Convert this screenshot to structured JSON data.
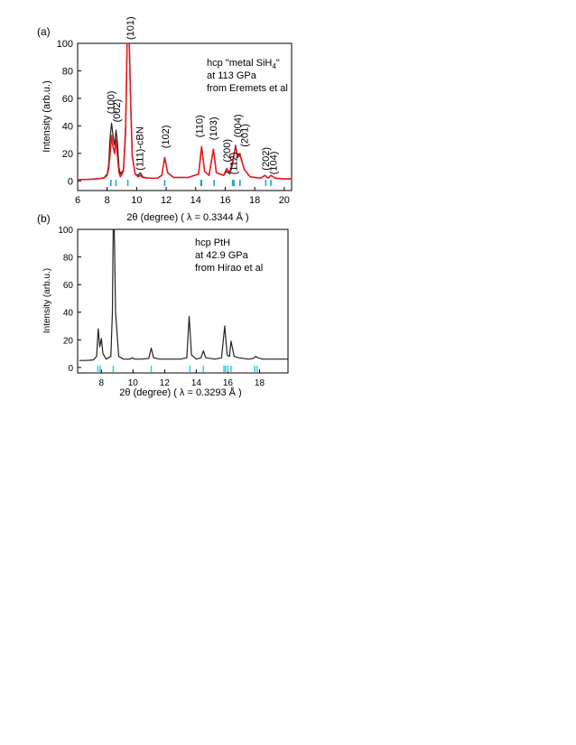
{
  "chart_data": [
    {
      "type": "line",
      "panel_label": "(a)",
      "annotation": [
        "hcp \"metal SiH₄\"",
        "at 113 GPa",
        "from Eremets et al"
      ],
      "xlabel": "2θ (degree) ( λ = 0.3344 Å )",
      "ylabel": "Intensity (arb.u.)",
      "xlim": [
        6,
        20.5
      ],
      "ylim": [
        -7,
        100
      ],
      "xticks": [
        6,
        8,
        10,
        12,
        14,
        16,
        18,
        20
      ],
      "yticks": [
        0,
        20,
        40,
        60,
        80,
        100
      ],
      "series": [
        {
          "color": "#222222",
          "values": [
            [
              6.0,
              1
            ],
            [
              6.5,
              1
            ],
            [
              7.0,
              1.3
            ],
            [
              7.5,
              1.8
            ],
            [
              7.8,
              2.5
            ],
            [
              8.0,
              5
            ],
            [
              8.1,
              12
            ],
            [
              8.2,
              32
            ],
            [
              8.3,
              42
            ],
            [
              8.4,
              33
            ],
            [
              8.5,
              26
            ],
            [
              8.6,
              37
            ],
            [
              8.7,
              28
            ],
            [
              8.8,
              10
            ],
            [
              8.9,
              5
            ],
            [
              9.1,
              8
            ],
            [
              9.25,
              40
            ],
            [
              9.35,
              100
            ],
            [
              9.5,
              100
            ],
            [
              9.6,
              55
            ],
            [
              9.7,
              18
            ],
            [
              9.9,
              5
            ],
            [
              10.1,
              4
            ],
            [
              10.25,
              6
            ],
            [
              10.4,
              3
            ],
            [
              10.8,
              2
            ],
            [
              11.4,
              2
            ],
            [
              11.7,
              4
            ],
            [
              11.9,
              17
            ],
            [
              12.1,
              6
            ],
            [
              12.5,
              2.5
            ],
            [
              13.5,
              2.5
            ],
            [
              14.2,
              5
            ],
            [
              14.4,
              25
            ],
            [
              14.6,
              7
            ],
            [
              14.9,
              4
            ],
            [
              15.2,
              23
            ],
            [
              15.4,
              6
            ],
            [
              15.9,
              4
            ],
            [
              16.1,
              7
            ],
            [
              16.3,
              5
            ],
            [
              16.5,
              12
            ],
            [
              16.7,
              26
            ],
            [
              16.85,
              18
            ],
            [
              17.0,
              20
            ],
            [
              17.3,
              8
            ],
            [
              17.7,
              3
            ],
            [
              18.4,
              2
            ],
            [
              18.7,
              4
            ],
            [
              18.9,
              2
            ],
            [
              19.1,
              4
            ],
            [
              19.4,
              2
            ],
            [
              20.0,
              1.5
            ],
            [
              20.5,
              1.5
            ]
          ]
        },
        {
          "color": "#e8191e",
          "values": [
            [
              6.0,
              1
            ],
            [
              6.5,
              1
            ],
            [
              7.0,
              1.3
            ],
            [
              7.5,
              1.7
            ],
            [
              7.8,
              2.2
            ],
            [
              8.0,
              4
            ],
            [
              8.1,
              9
            ],
            [
              8.2,
              20
            ],
            [
              8.3,
              33
            ],
            [
              8.4,
              25
            ],
            [
              8.5,
              20
            ],
            [
              8.6,
              30
            ],
            [
              8.7,
              18
            ],
            [
              8.8,
              6
            ],
            [
              8.9,
              3
            ],
            [
              9.1,
              7
            ],
            [
              9.25,
              35
            ],
            [
              9.35,
              100
            ],
            [
              9.5,
              100
            ],
            [
              9.6,
              55
            ],
            [
              9.7,
              18
            ],
            [
              9.9,
              5
            ],
            [
              10.1,
              3
            ],
            [
              10.25,
              4
            ],
            [
              10.4,
              2.5
            ],
            [
              10.8,
              2
            ],
            [
              11.4,
              2
            ],
            [
              11.7,
              4
            ],
            [
              11.9,
              17
            ],
            [
              12.1,
              6
            ],
            [
              12.5,
              2.5
            ],
            [
              13.5,
              2.5
            ],
            [
              14.2,
              5
            ],
            [
              14.4,
              25
            ],
            [
              14.6,
              7
            ],
            [
              14.9,
              4
            ],
            [
              15.2,
              23
            ],
            [
              15.4,
              6
            ],
            [
              15.9,
              4
            ],
            [
              16.1,
              9
            ],
            [
              16.3,
              6
            ],
            [
              16.5,
              14
            ],
            [
              16.7,
              25
            ],
            [
              16.85,
              17
            ],
            [
              17.0,
              19
            ],
            [
              17.3,
              8
            ],
            [
              17.7,
              3
            ],
            [
              18.4,
              2
            ],
            [
              18.7,
              4
            ],
            [
              18.9,
              2
            ],
            [
              19.1,
              4
            ],
            [
              19.4,
              2
            ],
            [
              20.0,
              1.5
            ],
            [
              20.5,
              1.5
            ]
          ]
        }
      ],
      "tick_marks": {
        "color": "#2aa3c8",
        "y": -1.5,
        "positions": [
          8.25,
          8.6,
          9.4,
          11.9,
          14.35,
          14.4,
          15.25,
          16.5,
          16.6,
          17.0,
          18.75,
          19.1
        ]
      },
      "peak_labels": [
        {
          "text": "(100)",
          "x": 8.3,
          "y": 46
        },
        {
          "text": "(002)",
          "x": 8.7,
          "y": 40
        },
        {
          "text": "(101)",
          "x": 9.6,
          "y": 100
        },
        {
          "text": "(111)-cBN",
          "x": 10.25,
          "y": 5
        },
        {
          "text": "(102)",
          "x": 12.0,
          "y": 21
        },
        {
          "text": "(110)",
          "x": 14.3,
          "y": 29
        },
        {
          "text": "(103)",
          "x": 15.25,
          "y": 27
        },
        {
          "text": "(200)",
          "x": 16.15,
          "y": 11
        },
        {
          "text": "(112)",
          "x": 16.6,
          "y": 2
        },
        {
          "text": "(004)",
          "x": 16.9,
          "y": 29
        },
        {
          "text": "(201)",
          "x": 17.35,
          "y": 22
        },
        {
          "text": "(202)",
          "x": 18.8,
          "y": 5
        },
        {
          "text": "(104)",
          "x": 19.3,
          "y": 2
        }
      ]
    },
    {
      "type": "line",
      "panel_label": "(b)",
      "annotation": [
        "hcp PtH",
        "at 42.9 GPa",
        "from Hirao et al"
      ],
      "xlabel": "2θ (degree) ( λ = 0.3293 Å )",
      "ylabel": "Intensity (arb.u.)",
      "xlim": [
        6.5,
        19.8
      ],
      "ylim": [
        -4,
        100
      ],
      "xticks": [
        8,
        10,
        12,
        14,
        16,
        18
      ],
      "yticks": [
        0,
        20,
        40,
        60,
        80,
        100
      ],
      "series": [
        {
          "color": "#222222",
          "values": [
            [
              6.6,
              5
            ],
            [
              7.0,
              5
            ],
            [
              7.3,
              5.2
            ],
            [
              7.5,
              5.5
            ],
            [
              7.7,
              8
            ],
            [
              7.8,
              28
            ],
            [
              7.9,
              15
            ],
            [
              8.0,
              21
            ],
            [
              8.1,
              10
            ],
            [
              8.3,
              6
            ],
            [
              8.6,
              8
            ],
            [
              8.7,
              40
            ],
            [
              8.75,
              100
            ],
            [
              8.82,
              100
            ],
            [
              8.9,
              40
            ],
            [
              9.1,
              8
            ],
            [
              9.4,
              6
            ],
            [
              9.8,
              6
            ],
            [
              9.95,
              7
            ],
            [
              10.1,
              6
            ],
            [
              10.5,
              6
            ],
            [
              11.0,
              6.5
            ],
            [
              11.15,
              14
            ],
            [
              11.3,
              7
            ],
            [
              11.7,
              6
            ],
            [
              13.0,
              6
            ],
            [
              13.4,
              7
            ],
            [
              13.55,
              37
            ],
            [
              13.7,
              9
            ],
            [
              14.0,
              6
            ],
            [
              14.3,
              7
            ],
            [
              14.45,
              12
            ],
            [
              14.6,
              7
            ],
            [
              15.2,
              6
            ],
            [
              15.6,
              7
            ],
            [
              15.8,
              30
            ],
            [
              15.95,
              9
            ],
            [
              16.1,
              8
            ],
            [
              16.2,
              19
            ],
            [
              16.4,
              8
            ],
            [
              16.7,
              7
            ],
            [
              17.3,
              6
            ],
            [
              17.6,
              6.5
            ],
            [
              17.75,
              8
            ],
            [
              17.9,
              7
            ],
            [
              18.2,
              6
            ],
            [
              19.0,
              6
            ],
            [
              19.8,
              6
            ]
          ]
        }
      ],
      "tick_marks": {
        "color": "#3dd2e0",
        "y": -1,
        "positions": [
          7.78,
          7.92,
          8.75,
          11.15,
          13.6,
          14.45,
          15.75,
          15.85,
          16.0,
          16.2,
          17.7,
          17.85
        ]
      }
    }
  ]
}
